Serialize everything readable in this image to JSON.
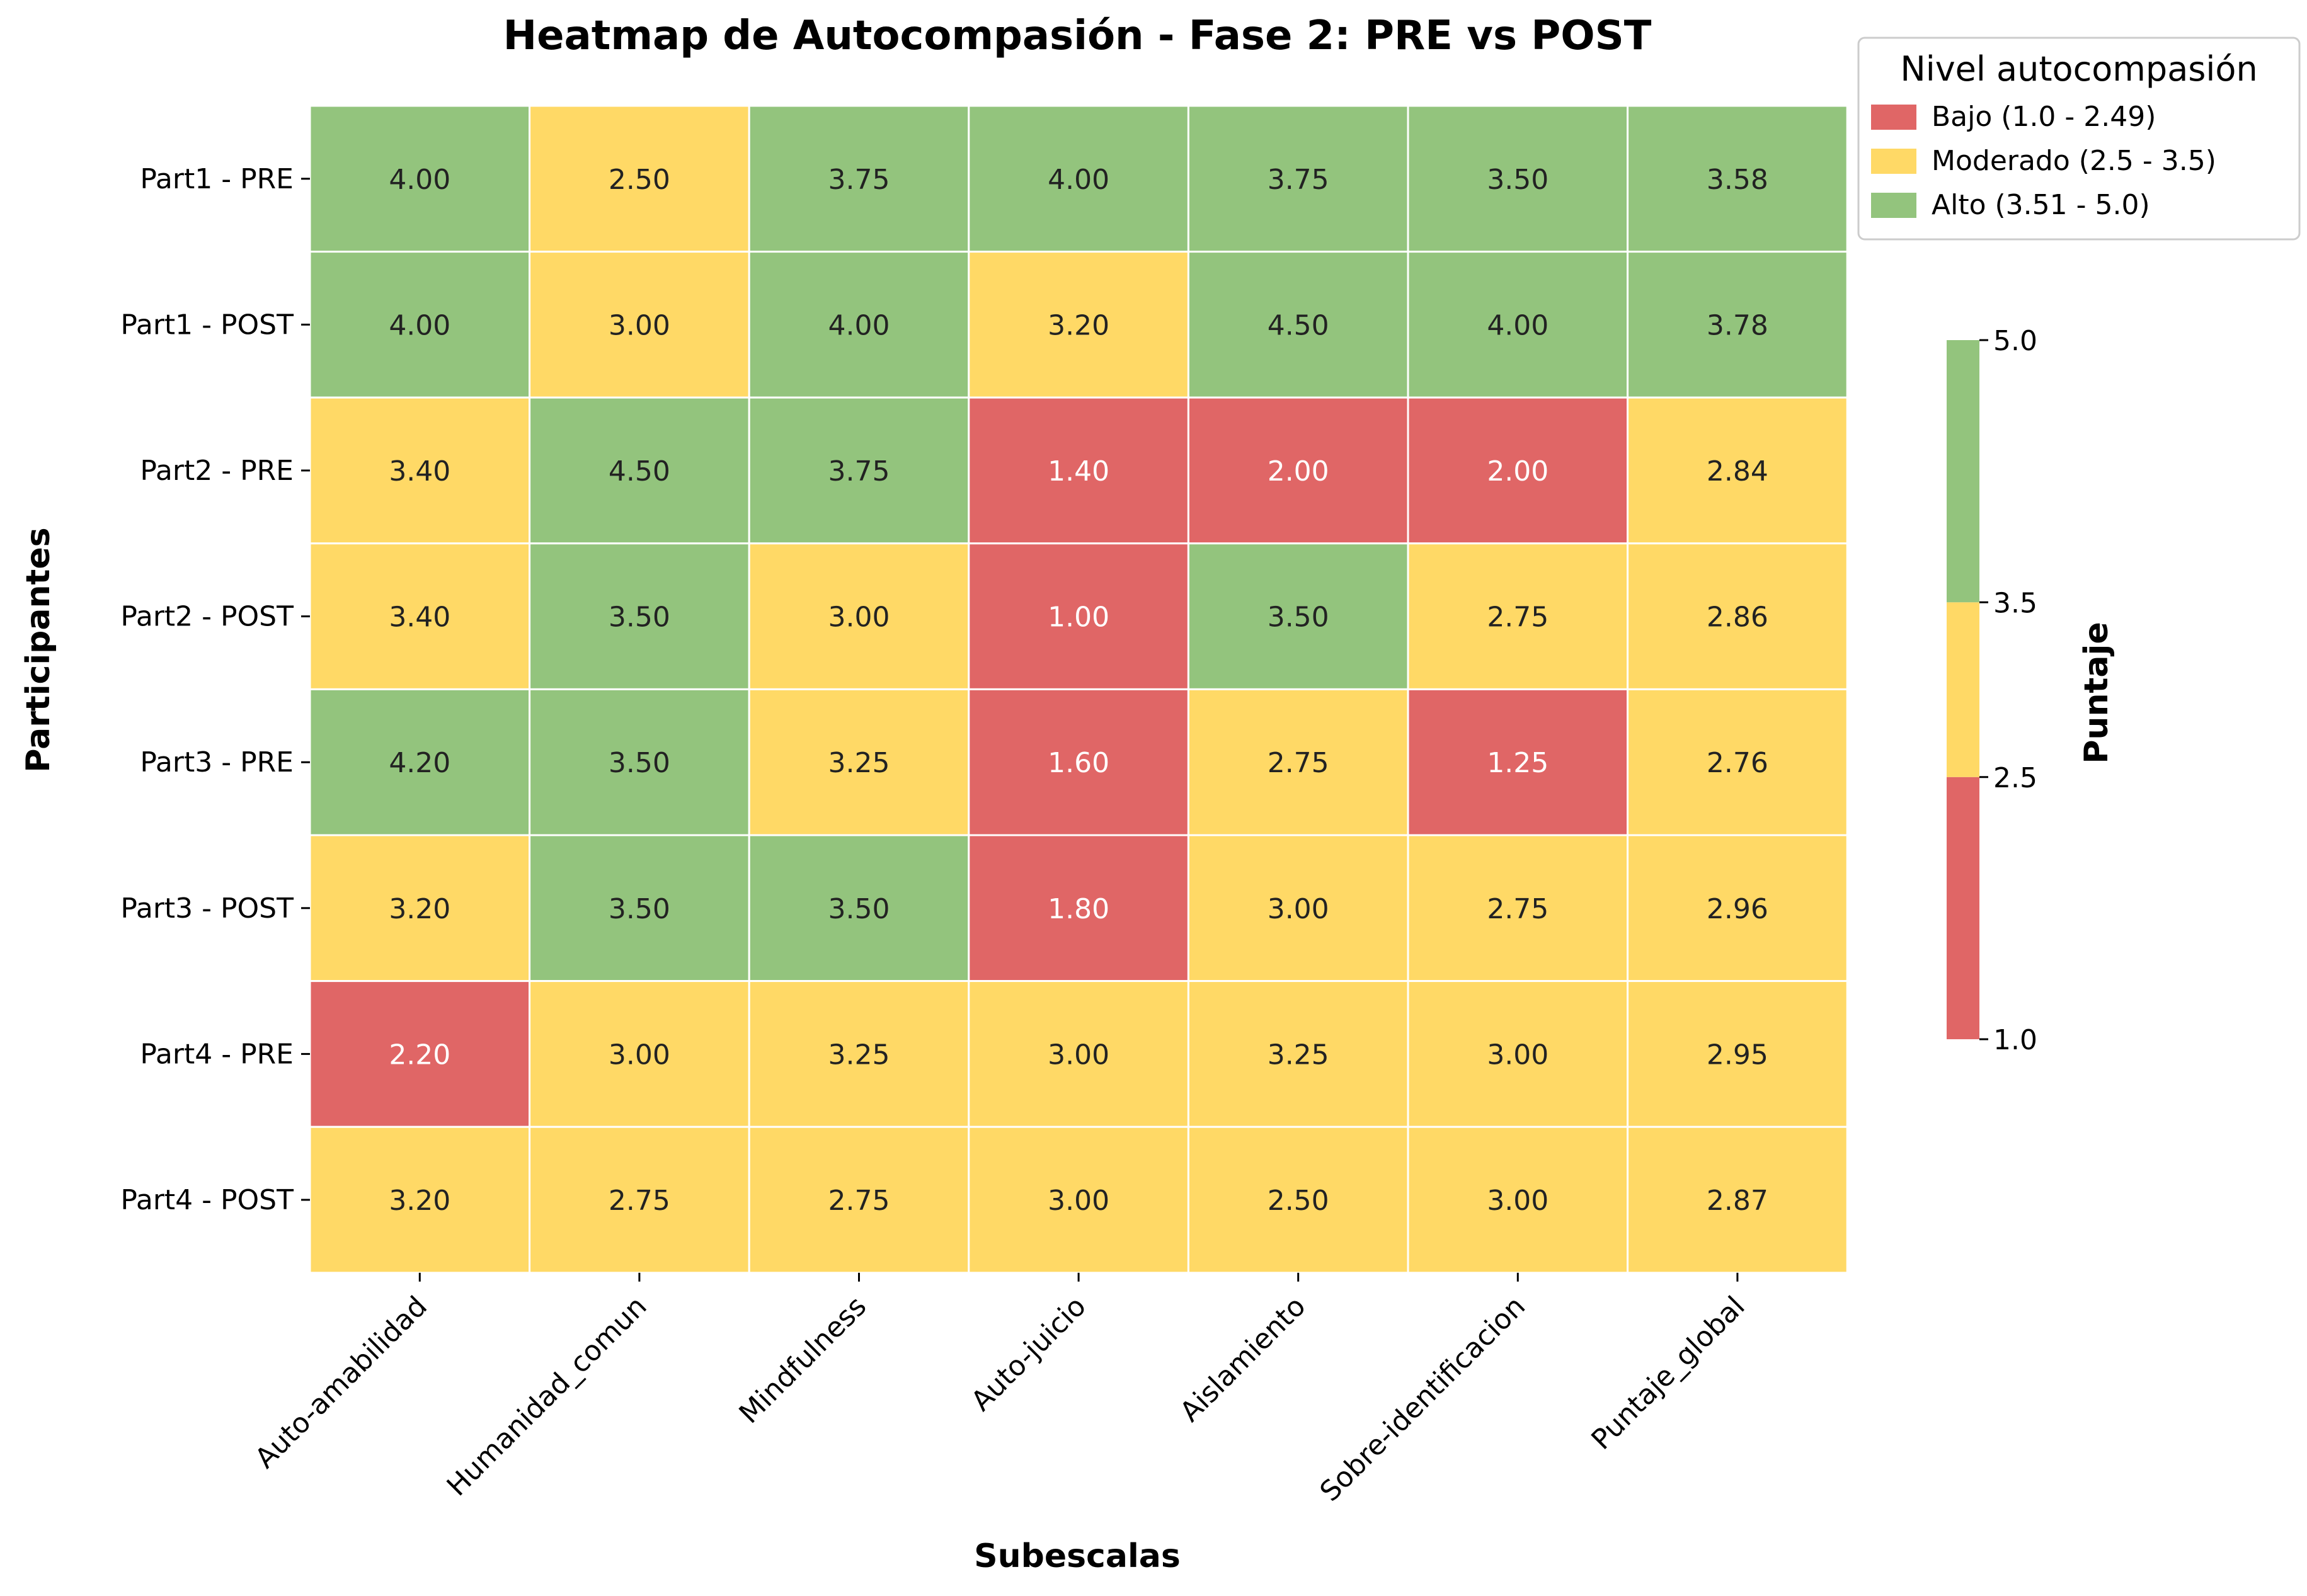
{
  "chart_data": {
    "type": "heatmap",
    "title": "Heatmap de Autocompasión - Fase 2: PRE vs POST",
    "xlabel": "Subescalas",
    "ylabel": "Participantes",
    "columns": [
      "Auto-amabilidad",
      "Humanidad_comun",
      "Mindfulness",
      "Auto-juicio",
      "Aislamiento",
      "Sobre-identificacion",
      "Puntaje_global"
    ],
    "rows": [
      "Part1 - PRE",
      "Part1 - POST",
      "Part2 - PRE",
      "Part2 - POST",
      "Part3 - PRE",
      "Part3 - POST",
      "Part4 - PRE",
      "Part4 - POST"
    ],
    "values": [
      [
        4.0,
        2.5,
        3.75,
        4.0,
        3.75,
        3.5,
        3.58
      ],
      [
        4.0,
        3.0,
        4.0,
        3.2,
        4.5,
        4.0,
        3.78
      ],
      [
        3.4,
        4.5,
        3.75,
        1.4,
        2.0,
        2.0,
        2.84
      ],
      [
        3.4,
        3.5,
        3.0,
        1.0,
        3.5,
        2.75,
        2.86
      ],
      [
        4.2,
        3.5,
        3.25,
        1.6,
        2.75,
        1.25,
        2.76
      ],
      [
        3.2,
        3.5,
        3.5,
        1.8,
        3.0,
        2.75,
        2.96
      ],
      [
        2.2,
        3.0,
        3.25,
        3.0,
        3.25,
        3.0,
        2.95
      ],
      [
        3.2,
        2.75,
        2.75,
        3.0,
        2.5,
        3.0,
        2.87
      ]
    ],
    "value_format_decimals": 2,
    "bands": [
      {
        "min": 1.0,
        "max": 2.5,
        "color": "#e06666"
      },
      {
        "min": 2.5,
        "max": 3.5,
        "color": "#ffd966"
      },
      {
        "min": 3.5,
        "max": 5.0,
        "color": "#93c47d"
      }
    ],
    "label_text_colors": {
      "dark": "#222222",
      "light": "#ffffff"
    },
    "legend": {
      "title": "Nivel autocompasión",
      "placement": "top-right",
      "entries": [
        {
          "label": "Bajo (1.0 - 2.49)",
          "color": "#e06666"
        },
        {
          "label": "Moderado (2.5 - 3.5)",
          "color": "#ffd966"
        },
        {
          "label": "Alto (3.51 - 5.0)",
          "color": "#93c47d"
        }
      ]
    },
    "colorbar": {
      "label": "Puntaje",
      "range": [
        1.0,
        5.0
      ],
      "ticks": [
        "1.0",
        "2.5",
        "3.5",
        "5.0"
      ]
    },
    "grid": false
  }
}
